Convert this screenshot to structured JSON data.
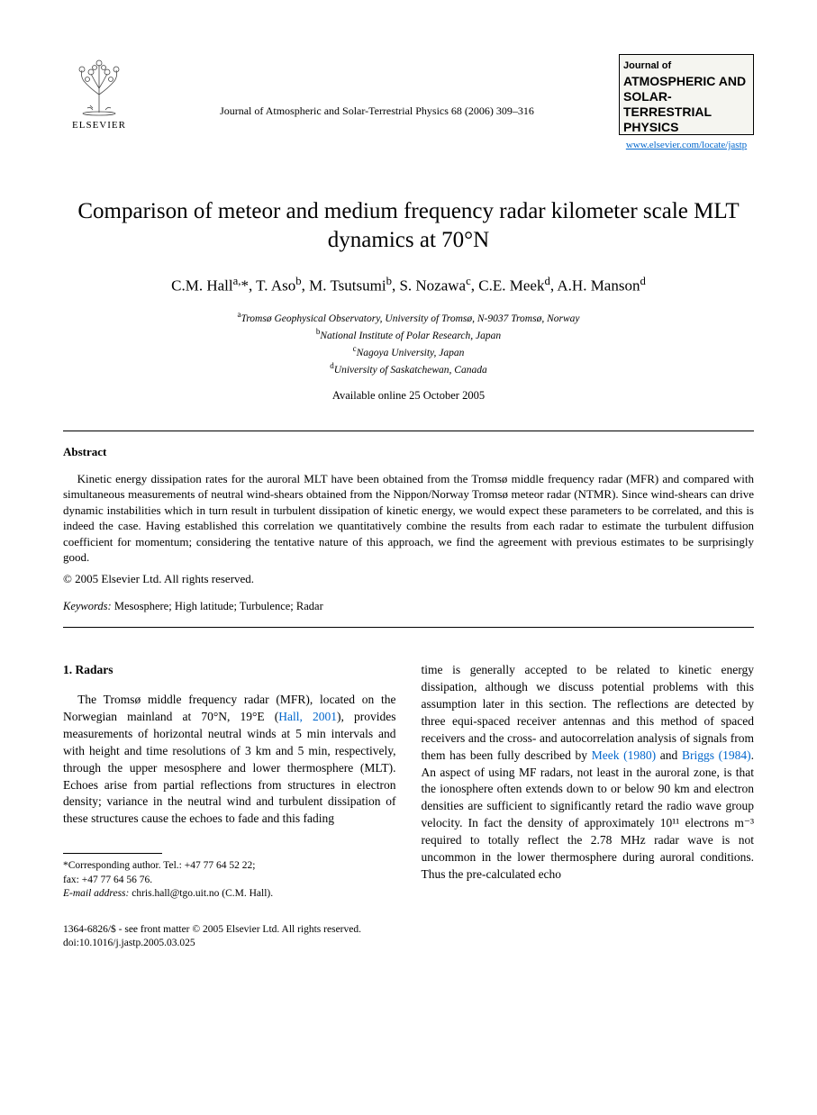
{
  "header": {
    "publisher_name": "ELSEVIER",
    "journal_ref": "Journal of Atmospheric and Solar-Terrestrial Physics 68 (2006) 309–316",
    "journal_title_line1": "Journal of",
    "journal_title_line2": "ATMOSPHERIC AND SOLAR-TERRESTRIAL PHYSICS",
    "journal_link": "www.elsevier.com/locate/jastp"
  },
  "article": {
    "title": "Comparison of meteor and medium frequency radar kilometer scale MLT dynamics at 70°N",
    "authors_html": "C.M. Hall<sup>a,</sup>*, T. Aso<sup>b</sup>, M. Tsutsumi<sup>b</sup>, S. Nozawa<sup>c</sup>, C.E. Meek<sup>d</sup>, A.H. Manson<sup>d</sup>",
    "affiliations": [
      {
        "sup": "a",
        "text": "Tromsø Geophysical Observatory, University of Tromsø, N-9037 Tromsø, Norway"
      },
      {
        "sup": "b",
        "text": "National Institute of Polar Research, Japan"
      },
      {
        "sup": "c",
        "text": "Nagoya University, Japan"
      },
      {
        "sup": "d",
        "text": "University of Saskatchewan, Canada"
      }
    ],
    "available_online": "Available online 25 October 2005"
  },
  "abstract": {
    "heading": "Abstract",
    "body": "Kinetic energy dissipation rates for the auroral MLT have been obtained from the Tromsø middle frequency radar (MFR) and compared with simultaneous measurements of neutral wind-shears obtained from the Nippon/Norway Tromsø meteor radar (NTMR). Since wind-shears can drive dynamic instabilities which in turn result in turbulent dissipation of kinetic energy, we would expect these parameters to be correlated, and this is indeed the case. Having established this correlation we quantitatively combine the results from each radar to estimate the turbulent diffusion coefficient for momentum; considering the tentative nature of this approach, we find the agreement with previous estimates to be surprisingly good.",
    "copyright": "© 2005 Elsevier Ltd. All rights reserved.",
    "keywords_label": "Keywords:",
    "keywords_text": " Mesosphere; High latitude; Turbulence; Radar"
  },
  "body": {
    "section_number": "1.",
    "section_title": "Radars",
    "col1_pre": "The Tromsø middle frequency radar (MFR), located on the Norwegian mainland at 70°N, 19°E (",
    "col1_cite1": "Hall, 2001",
    "col1_post": "), provides measurements of horizontal neutral winds at 5 min intervals and with height and time resolutions of 3 km and 5 min, respectively, through the upper mesosphere and lower thermosphere (MLT). Echoes arise from partial reflections from structures in electron density; variance in the neutral wind and turbulent dissipation of these structures cause the echoes to fade and this fading",
    "col2_pre": "time is generally accepted to be related to kinetic energy dissipation, although we discuss potential problems with this assumption later in this section. The reflections are detected by three equi-spaced receiver antennas and this method of spaced receivers and the cross- and autocorrelation analysis of signals from them has been fully described by ",
    "col2_cite1": "Meek (1980)",
    "col2_mid": " and ",
    "col2_cite2": "Briggs (1984)",
    "col2_post": ". An aspect of using MF radars, not least in the auroral zone, is that the ionosphere often extends down to or below 90 km and electron densities are sufficient to significantly retard the radio wave group velocity. In fact the density of approximately 10¹¹ electrons m⁻³ required to totally reflect the 2.78 MHz radar wave is not uncommon in the lower thermosphere during auroral conditions. Thus the pre-calculated echo"
  },
  "footnotes": {
    "corr": "*Corresponding author. Tel.: +47 77 64 52 22;",
    "fax": "fax: +47 77 64 56 76.",
    "email_label": "E-mail address:",
    "email": " chris.hall@tgo.uit.no (C.M. Hall)."
  },
  "footer": {
    "issn": "1364-6826/$ - see front matter © 2005 Elsevier Ltd. All rights reserved.",
    "doi": "doi:10.1016/j.jastp.2005.03.025"
  },
  "colors": {
    "link": "#0066cc",
    "text": "#000000",
    "bg": "#ffffff"
  }
}
